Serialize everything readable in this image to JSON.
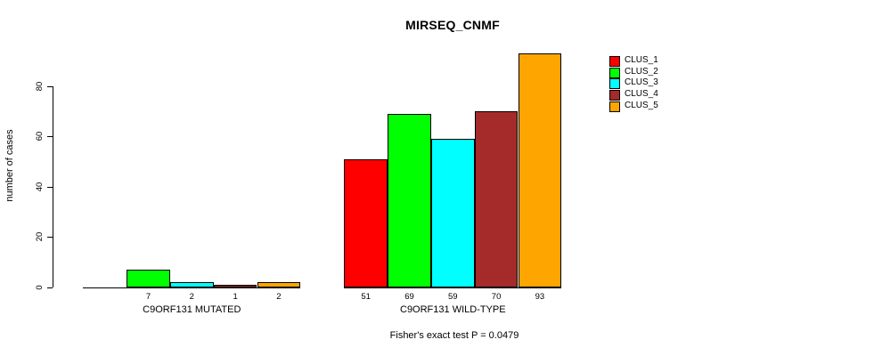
{
  "chart_data": {
    "type": "bar",
    "title": "MIRSEQ_CNMF",
    "ylabel": "number of cases",
    "xlabel": "",
    "ylim": [
      0,
      80
    ],
    "yticks": [
      0,
      20,
      40,
      60,
      80
    ],
    "grid": false,
    "legend_position": "right",
    "categories": [
      "C9ORF131 MUTATED",
      "C9ORF131 WILD-TYPE"
    ],
    "series": [
      {
        "name": "CLUS_1",
        "color": "#ff0000",
        "values": [
          0,
          51
        ]
      },
      {
        "name": "CLUS_2",
        "color": "#00ff00",
        "values": [
          7,
          69
        ]
      },
      {
        "name": "CLUS_3",
        "color": "#00ffff",
        "values": [
          2,
          59
        ]
      },
      {
        "name": "CLUS_4",
        "color": "#a52a2a",
        "values": [
          1,
          70
        ]
      },
      {
        "name": "CLUS_5",
        "color": "#ffa500",
        "values": [
          2,
          93
        ]
      }
    ],
    "value_labels_shown": [
      "7",
      "2",
      "1",
      "2",
      "51",
      "69",
      "59",
      "70",
      "93"
    ],
    "annotation": "Fisher's exact test P = 0.0479"
  }
}
